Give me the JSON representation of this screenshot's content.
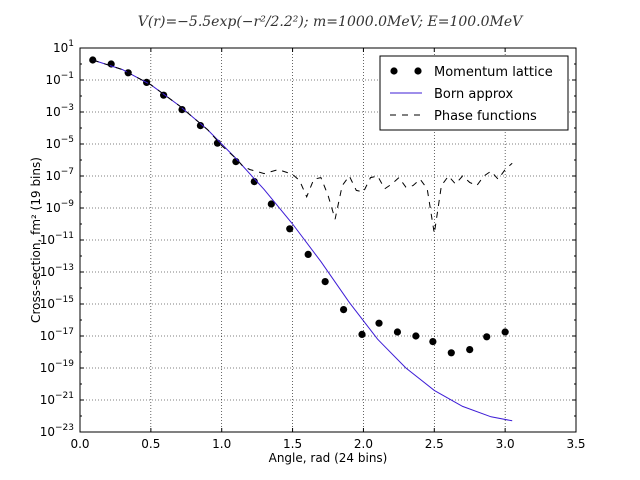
{
  "chart_data": {
    "type": "line",
    "title": "V(r)=−5.5exp(−r²/2.2²); m=1000.0MeV;  E=100.0MeV",
    "xlabel": "Angle, rad (24 bins)",
    "ylabel": "Cross-section, fm² (19 bins)",
    "xlim": [
      0.0,
      3.5
    ],
    "ylim_log10": [
      -23,
      1
    ],
    "yscale": "log",
    "grid": true,
    "legend_position": "top-right",
    "x_ticks": [
      "0.0",
      "0.5",
      "1.0",
      "1.5",
      "2.0",
      "2.5",
      "3.0",
      "3.5"
    ],
    "x_tick_values": [
      0.0,
      0.5,
      1.0,
      1.5,
      2.0,
      2.5,
      3.0,
      3.5
    ],
    "y_tick_exponents": [
      1,
      -1,
      -3,
      -5,
      -7,
      -9,
      -11,
      -13,
      -15,
      -17,
      -19,
      -21,
      -23
    ],
    "series": [
      {
        "name": "Momentum lattice",
        "style": "markers",
        "color": "#000000",
        "x": [
          0.09,
          0.22,
          0.34,
          0.47,
          0.59,
          0.72,
          0.85,
          0.97,
          1.1,
          1.23,
          1.35,
          1.48,
          1.61,
          1.73,
          1.86,
          1.99,
          2.11,
          2.24,
          2.37,
          2.49,
          2.62,
          2.75,
          2.87,
          3.0
        ],
        "log10_y": [
          0.25,
          0.0,
          -0.55,
          -1.15,
          -1.95,
          -2.85,
          -3.85,
          -4.95,
          -6.1,
          -7.35,
          -8.75,
          -10.3,
          -11.9,
          -13.6,
          -15.35,
          -16.9,
          -16.2,
          -16.75,
          -17.0,
          -17.35,
          -18.05,
          -17.85,
          -17.05,
          -16.75
        ]
      },
      {
        "name": "Born approx",
        "style": "line",
        "color": "#3d1cd6",
        "x": [
          0.09,
          0.3,
          0.5,
          0.7,
          0.9,
          1.1,
          1.3,
          1.5,
          1.7,
          1.9,
          2.1,
          2.3,
          2.5,
          2.7,
          2.9,
          3.05
        ],
        "log10_y": [
          0.25,
          -0.35,
          -1.3,
          -2.6,
          -4.1,
          -5.9,
          -7.85,
          -10.0,
          -12.35,
          -14.9,
          -17.2,
          -19.0,
          -20.4,
          -21.4,
          -22.05,
          -22.3
        ]
      },
      {
        "name": "Phase functions",
        "style": "dashed",
        "color": "#000000",
        "x": [
          0.09,
          0.3,
          0.5,
          0.7,
          0.9,
          1.0,
          1.1,
          1.15,
          1.2,
          1.3,
          1.4,
          1.5,
          1.55,
          1.6,
          1.65,
          1.7,
          1.75,
          1.8,
          1.85,
          1.9,
          1.95,
          2.0,
          2.05,
          2.1,
          2.15,
          2.2,
          2.25,
          2.3,
          2.35,
          2.4,
          2.45,
          2.5,
          2.55,
          2.6,
          2.65,
          2.7,
          2.75,
          2.8,
          2.85,
          2.9,
          2.95,
          3.0,
          3.05
        ],
        "log10_y": [
          0.25,
          -0.35,
          -1.3,
          -2.6,
          -4.1,
          -5.1,
          -5.9,
          -6.4,
          -6.6,
          -6.85,
          -6.6,
          -6.9,
          -7.3,
          -8.3,
          -7.2,
          -7.1,
          -8.2,
          -9.7,
          -7.6,
          -7.0,
          -7.9,
          -8.0,
          -7.1,
          -7.0,
          -7.8,
          -7.5,
          -7.1,
          -7.7,
          -7.6,
          -7.2,
          -7.8,
          -10.6,
          -7.6,
          -7.0,
          -7.5,
          -7.0,
          -7.4,
          -7.6,
          -7.0,
          -6.7,
          -7.2,
          -6.6,
          -6.2
        ]
      }
    ]
  }
}
